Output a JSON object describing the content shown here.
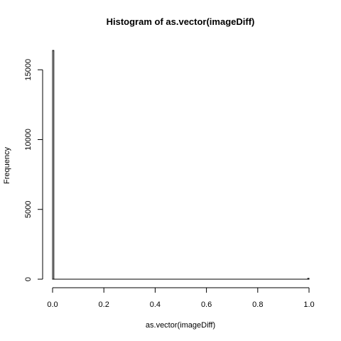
{
  "chart_data": {
    "type": "bar",
    "title": "Histogram of as.vector(imageDiff)",
    "xlabel": "as.vector(imageDiff)",
    "ylabel": "Frequency",
    "xlim": [
      0,
      1
    ],
    "ylim": [
      0,
      16384
    ],
    "x_ticks": [
      "0.0",
      "0.2",
      "0.4",
      "0.6",
      "0.8",
      "1.0"
    ],
    "y_ticks": [
      "0",
      "5000",
      "10000",
      "15000"
    ],
    "bin_width": 0.005,
    "bins": [
      {
        "x0": 0.0,
        "x1": 0.005,
        "count": 16384
      },
      {
        "x0": 0.995,
        "x1": 1.0,
        "count": 60
      }
    ],
    "grid": false,
    "legend": "none"
  }
}
